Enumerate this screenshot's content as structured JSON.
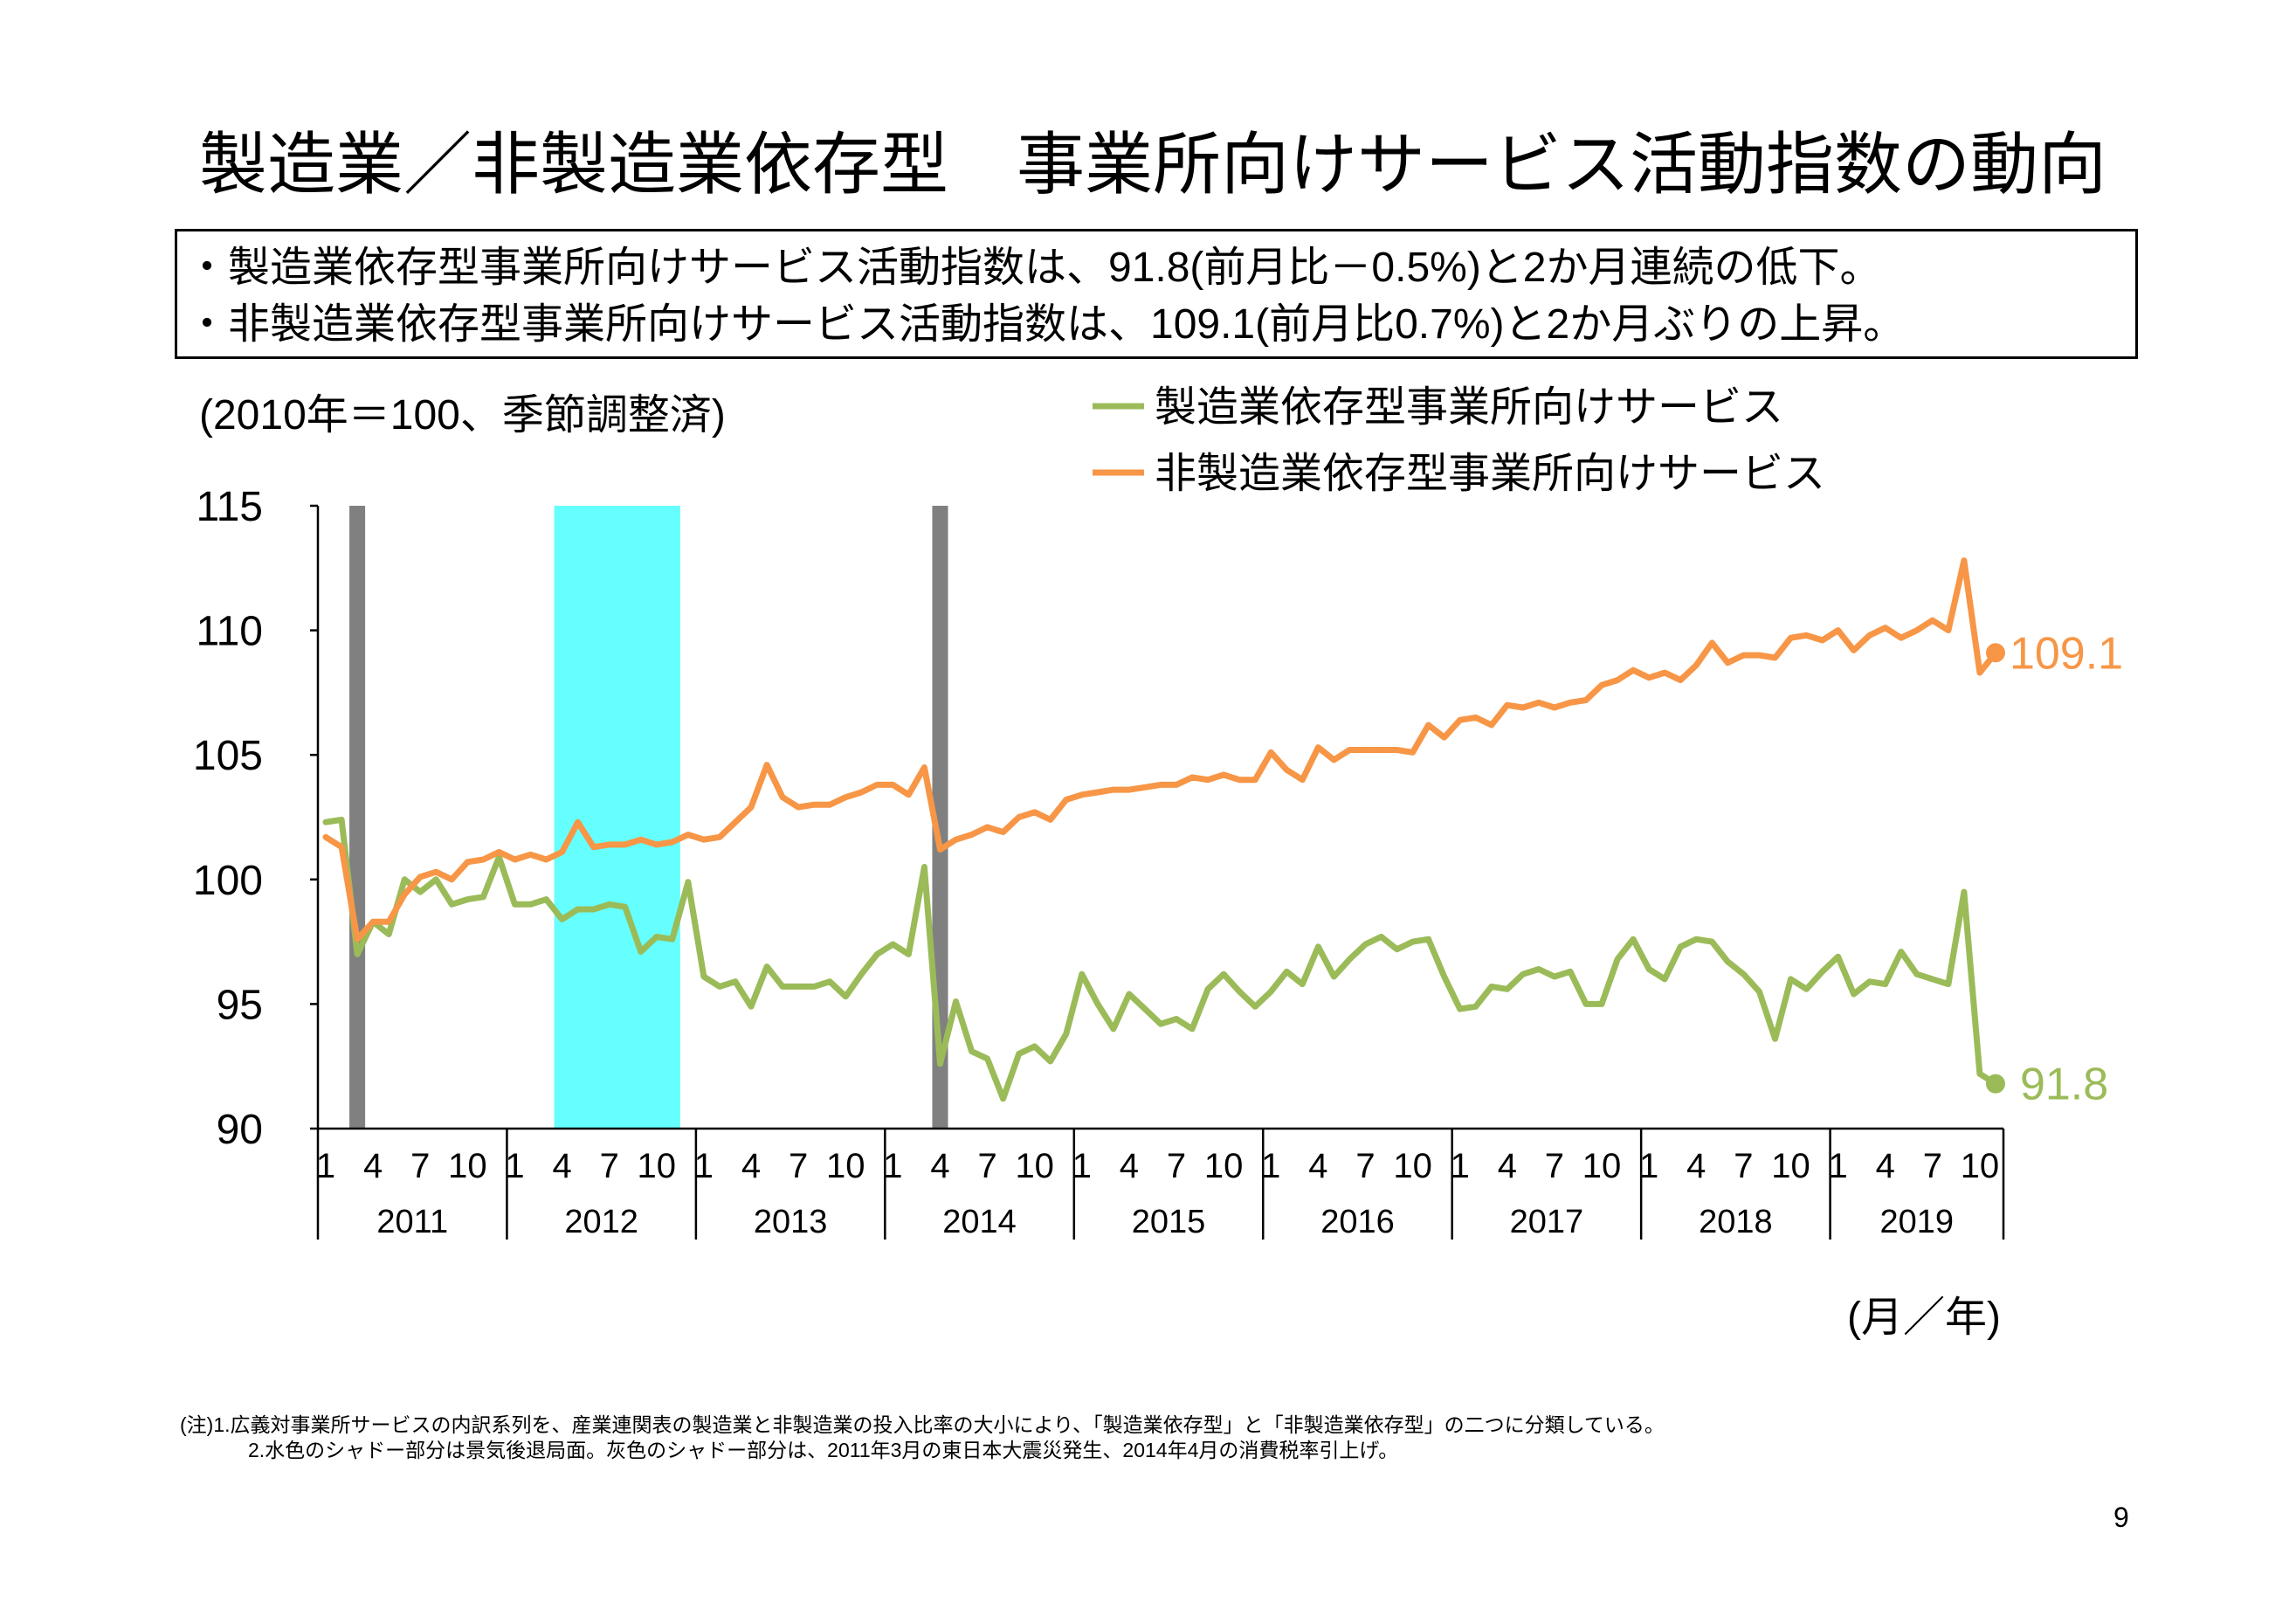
{
  "title": "製造業／非製造業依存型　事業所向けサービス活動指数の動向",
  "summary": [
    "・製造業依存型事業所向けサービス活動指数は、91.8(前月比－0.5%)と2か月連続の低下。",
    "・非製造業依存型事業所向けサービス活動指数は、109.1(前月比0.7%)と2か月ぶりの上昇。"
  ],
  "chart_data": {
    "type": "line",
    "ylabel": "(2010年＝100、季節調整済)",
    "xlabel": "(月／年)",
    "ylim": [
      90,
      115
    ],
    "yticks": [
      115,
      110,
      105,
      100,
      95,
      90
    ],
    "month_tick_labels": [
      "1",
      "4",
      "7",
      "10"
    ],
    "years": [
      "2011",
      "2012",
      "2013",
      "2014",
      "2015",
      "2016",
      "2017",
      "2018",
      "2019"
    ],
    "x": [
      "2011-01",
      "2011-02",
      "2011-03",
      "2011-04",
      "2011-05",
      "2011-06",
      "2011-07",
      "2011-08",
      "2011-09",
      "2011-10",
      "2011-11",
      "2011-12",
      "2012-01",
      "2012-02",
      "2012-03",
      "2012-04",
      "2012-05",
      "2012-06",
      "2012-07",
      "2012-08",
      "2012-09",
      "2012-10",
      "2012-11",
      "2012-12",
      "2013-01",
      "2013-02",
      "2013-03",
      "2013-04",
      "2013-05",
      "2013-06",
      "2013-07",
      "2013-08",
      "2013-09",
      "2013-10",
      "2013-11",
      "2013-12",
      "2014-01",
      "2014-02",
      "2014-03",
      "2014-04",
      "2014-05",
      "2014-06",
      "2014-07",
      "2014-08",
      "2014-09",
      "2014-10",
      "2014-11",
      "2014-12",
      "2015-01",
      "2015-02",
      "2015-03",
      "2015-04",
      "2015-05",
      "2015-06",
      "2015-07",
      "2015-08",
      "2015-09",
      "2015-10",
      "2015-11",
      "2015-12",
      "2016-01",
      "2016-02",
      "2016-03",
      "2016-04",
      "2016-05",
      "2016-06",
      "2016-07",
      "2016-08",
      "2016-09",
      "2016-10",
      "2016-11",
      "2016-12",
      "2017-01",
      "2017-02",
      "2017-03",
      "2017-04",
      "2017-05",
      "2017-06",
      "2017-07",
      "2017-08",
      "2017-09",
      "2017-10",
      "2017-11",
      "2017-12",
      "2018-01",
      "2018-02",
      "2018-03",
      "2018-04",
      "2018-05",
      "2018-06",
      "2018-07",
      "2018-08",
      "2018-09",
      "2018-10",
      "2018-11",
      "2018-12",
      "2019-01",
      "2019-02",
      "2019-03",
      "2019-04",
      "2019-05",
      "2019-06",
      "2019-07",
      "2019-08",
      "2019-09",
      "2019-10",
      "2019-11"
    ],
    "series": [
      {
        "name": "製造業依存型事業所向けサービス",
        "color": "#9BBB59",
        "end_label": "91.8",
        "values": [
          102.3,
          102.4,
          97.0,
          98.3,
          97.8,
          100.0,
          99.5,
          100.0,
          99.0,
          99.2,
          99.3,
          100.9,
          99.0,
          99.0,
          99.2,
          98.4,
          98.8,
          98.8,
          99.0,
          98.9,
          97.1,
          97.7,
          97.6,
          99.9,
          96.1,
          95.7,
          95.9,
          94.9,
          96.5,
          95.7,
          95.7,
          95.7,
          95.9,
          95.3,
          96.2,
          97.0,
          97.4,
          97.0,
          100.5,
          92.6,
          95.1,
          93.1,
          92.8,
          91.2,
          93.0,
          93.3,
          92.7,
          93.8,
          96.2,
          95.0,
          94.0,
          95.4,
          94.8,
          94.2,
          94.4,
          94.0,
          95.6,
          96.2,
          95.5,
          94.9,
          95.5,
          96.3,
          95.8,
          97.3,
          96.1,
          96.8,
          97.4,
          97.7,
          97.2,
          97.5,
          97.6,
          96.1,
          94.8,
          94.9,
          95.7,
          95.6,
          96.2,
          96.4,
          96.1,
          96.3,
          95.0,
          95.0,
          96.8,
          97.6,
          96.4,
          96.0,
          97.3,
          97.6,
          97.5,
          96.7,
          96.2,
          95.5,
          93.6,
          96.0,
          95.6,
          96.3,
          96.9,
          95.4,
          95.9,
          95.8,
          97.1,
          96.2,
          96.0,
          95.8,
          99.5,
          92.2,
          91.8
        ]
      },
      {
        "name": "非製造業依存型事業所向けサービス",
        "color": "#F79646",
        "end_label": "109.1",
        "values": [
          101.7,
          101.3,
          97.6,
          98.3,
          98.3,
          99.4,
          100.1,
          100.3,
          100.0,
          100.7,
          100.8,
          101.1,
          100.8,
          101.0,
          100.8,
          101.1,
          102.3,
          101.3,
          101.4,
          101.4,
          101.6,
          101.4,
          101.5,
          101.8,
          101.6,
          101.7,
          102.3,
          102.9,
          104.6,
          103.3,
          102.9,
          103.0,
          103.0,
          103.3,
          103.5,
          103.8,
          103.8,
          103.4,
          104.5,
          101.2,
          101.6,
          101.8,
          102.1,
          101.9,
          102.5,
          102.7,
          102.4,
          103.2,
          103.4,
          103.5,
          103.6,
          103.6,
          103.7,
          103.8,
          103.8,
          104.1,
          104.0,
          104.2,
          104.0,
          104.0,
          105.1,
          104.4,
          104.0,
          105.3,
          104.8,
          105.2,
          105.2,
          105.2,
          105.2,
          105.1,
          106.2,
          105.7,
          106.4,
          106.5,
          106.2,
          107.0,
          106.9,
          107.1,
          106.9,
          107.1,
          107.2,
          107.8,
          108.0,
          108.4,
          108.1,
          108.3,
          108.0,
          108.6,
          109.5,
          108.7,
          109.0,
          109.0,
          108.9,
          109.7,
          109.8,
          109.6,
          110.0,
          109.2,
          109.8,
          110.1,
          109.7,
          110.0,
          110.4,
          110.0,
          112.8,
          108.3,
          109.1
        ]
      }
    ],
    "shading": [
      {
        "from": "2011-03",
        "to": "2011-03",
        "color": "#808080"
      },
      {
        "from": "2012-04",
        "to": "2012-11",
        "color": "#66FFFF"
      },
      {
        "from": "2014-04",
        "to": "2014-04",
        "color": "#808080"
      }
    ],
    "legend": "top-right",
    "grid": false
  },
  "notes": [
    "(注)1.広義対事業所サービスの内訳系列を、産業連関表の製造業と非製造業の投入比率の大小により、「製造業依存型」と「非製造業依存型」の二つに分類している。",
    "2.水色のシャドー部分は景気後退局面。灰色のシャドー部分は、2011年3月の東日本大震災発生、2014年4月の消費税率引上げ。"
  ],
  "page_number": "9"
}
